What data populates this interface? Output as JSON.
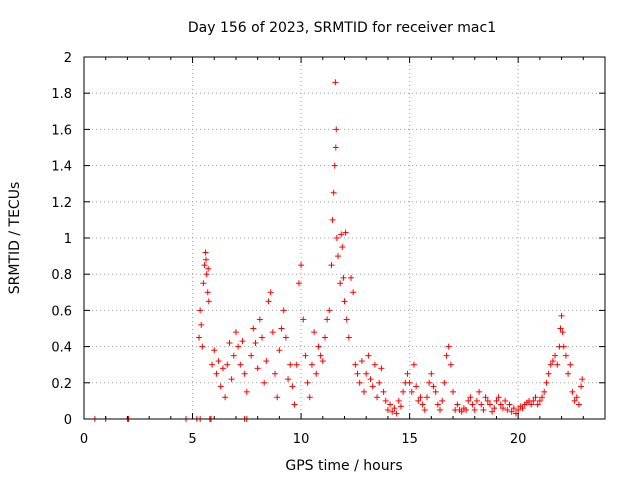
{
  "chart_data": {
    "type": "scatter",
    "title": "Day 156 of 2023, SRMTID for receiver mac1",
    "xlabel": "GPS time / hours",
    "ylabel": "SRMTID / TECUs",
    "xlim": [
      0,
      24
    ],
    "ylim": [
      0,
      2
    ],
    "x_ticks": [
      0,
      5,
      10,
      15,
      20
    ],
    "y_ticks": [
      0,
      0.2,
      0.4,
      0.6,
      0.8,
      1,
      1.2,
      1.4,
      1.6,
      1.8,
      2
    ],
    "x_tick_labels": [
      "0",
      "5",
      "10",
      "15",
      "20"
    ],
    "y_tick_labels": [
      "0",
      "0.2",
      "0.4",
      "0.6",
      "0.8",
      "1",
      "1.2",
      "1.4",
      "1.6",
      "1.8",
      "2"
    ],
    "grid": true,
    "marker": "+",
    "series": [
      {
        "name": "SRMTID",
        "color": "#ff0000",
        "points": [
          [
            0.5,
            0
          ],
          [
            1.0,
            0
          ],
          [
            2.0,
            0
          ],
          [
            2.05,
            0
          ],
          [
            4.7,
            0
          ],
          [
            5.2,
            0
          ],
          [
            5.35,
            0
          ],
          [
            5.8,
            0
          ],
          [
            5.85,
            0
          ],
          [
            7.4,
            0
          ],
          [
            7.5,
            0
          ],
          [
            5.3,
            0.45
          ],
          [
            5.35,
            0.6
          ],
          [
            5.4,
            0.52
          ],
          [
            5.45,
            0.4
          ],
          [
            5.5,
            0.75
          ],
          [
            5.55,
            0.85
          ],
          [
            5.6,
            0.92
          ],
          [
            5.62,
            0.88
          ],
          [
            5.65,
            0.8
          ],
          [
            5.7,
            0.7
          ],
          [
            5.72,
            0.83
          ],
          [
            5.75,
            0.65
          ],
          [
            5.9,
            0.3
          ],
          [
            6.0,
            0.38
          ],
          [
            6.1,
            0.25
          ],
          [
            6.2,
            0.32
          ],
          [
            6.3,
            0.18
          ],
          [
            6.4,
            0.28
          ],
          [
            6.5,
            0.12
          ],
          [
            6.6,
            0.3
          ],
          [
            6.7,
            0.42
          ],
          [
            6.8,
            0.22
          ],
          [
            6.9,
            0.35
          ],
          [
            7.0,
            0.48
          ],
          [
            7.1,
            0.4
          ],
          [
            7.2,
            0.3
          ],
          [
            7.3,
            0.43
          ],
          [
            7.4,
            0.25
          ],
          [
            7.5,
            0.15
          ],
          [
            7.7,
            0.35
          ],
          [
            7.8,
            0.5
          ],
          [
            7.9,
            0.42
          ],
          [
            8.0,
            0.28
          ],
          [
            8.1,
            0.55
          ],
          [
            8.2,
            0.45
          ],
          [
            8.3,
            0.2
          ],
          [
            8.4,
            0.32
          ],
          [
            8.5,
            0.65
          ],
          [
            8.6,
            0.7
          ],
          [
            8.7,
            0.48
          ],
          [
            8.8,
            0.25
          ],
          [
            8.9,
            0.12
          ],
          [
            9.0,
            0.38
          ],
          [
            9.1,
            0.5
          ],
          [
            9.2,
            0.6
          ],
          [
            9.3,
            0.45
          ],
          [
            9.4,
            0.22
          ],
          [
            9.5,
            0.3
          ],
          [
            9.6,
            0.18
          ],
          [
            9.7,
            0.08
          ],
          [
            9.8,
            0.3
          ],
          [
            9.9,
            0.75
          ],
          [
            10.0,
            0.85
          ],
          [
            10.1,
            0.55
          ],
          [
            10.2,
            0.35
          ],
          [
            10.3,
            0.2
          ],
          [
            10.4,
            0.12
          ],
          [
            10.5,
            0.3
          ],
          [
            10.6,
            0.48
          ],
          [
            10.7,
            0.25
          ],
          [
            10.8,
            0.4
          ],
          [
            10.9,
            0.35
          ],
          [
            11.0,
            0.32
          ],
          [
            11.1,
            0.45
          ],
          [
            11.2,
            0.55
          ],
          [
            11.3,
            0.6
          ],
          [
            11.4,
            0.85
          ],
          [
            11.45,
            1.1
          ],
          [
            11.5,
            1.25
          ],
          [
            11.55,
            1.4
          ],
          [
            11.6,
            1.5
          ],
          [
            11.62,
            1.6
          ],
          [
            11.58,
            1.86
          ],
          [
            11.65,
            1.0
          ],
          [
            11.7,
            0.9
          ],
          [
            11.8,
            0.75
          ],
          [
            11.85,
            1.02
          ],
          [
            11.9,
            0.95
          ],
          [
            11.95,
            0.78
          ],
          [
            12.0,
            0.65
          ],
          [
            12.05,
            1.03
          ],
          [
            12.1,
            0.55
          ],
          [
            12.2,
            0.45
          ],
          [
            12.3,
            0.78
          ],
          [
            12.4,
            0.7
          ],
          [
            12.5,
            0.3
          ],
          [
            12.6,
            0.25
          ],
          [
            12.7,
            0.2
          ],
          [
            12.8,
            0.32
          ],
          [
            12.9,
            0.15
          ],
          [
            13.0,
            0.25
          ],
          [
            13.1,
            0.35
          ],
          [
            13.2,
            0.22
          ],
          [
            13.3,
            0.18
          ],
          [
            13.4,
            0.3
          ],
          [
            13.5,
            0.12
          ],
          [
            13.6,
            0.2
          ],
          [
            13.7,
            0.28
          ],
          [
            13.8,
            0.15
          ],
          [
            13.9,
            0.1
          ],
          [
            14.0,
            0.05
          ],
          [
            14.1,
            0.08
          ],
          [
            14.2,
            0.04
          ],
          [
            14.3,
            0.06
          ],
          [
            14.4,
            0.03
          ],
          [
            14.5,
            0.1
          ],
          [
            14.6,
            0.07
          ],
          [
            14.7,
            0.15
          ],
          [
            14.8,
            0.2
          ],
          [
            14.9,
            0.25
          ],
          [
            15.0,
            0.2
          ],
          [
            15.1,
            0.15
          ],
          [
            15.2,
            0.3
          ],
          [
            15.3,
            0.18
          ],
          [
            15.4,
            0.1
          ],
          [
            15.5,
            0.12
          ],
          [
            15.6,
            0.08
          ],
          [
            15.7,
            0.05
          ],
          [
            15.8,
            0.12
          ],
          [
            15.9,
            0.2
          ],
          [
            16.0,
            0.25
          ],
          [
            16.1,
            0.18
          ],
          [
            16.2,
            0.15
          ],
          [
            16.3,
            0.08
          ],
          [
            16.4,
            0.05
          ],
          [
            16.5,
            0.1
          ],
          [
            16.6,
            0.2
          ],
          [
            16.7,
            0.35
          ],
          [
            16.8,
            0.4
          ],
          [
            16.9,
            0.3
          ],
          [
            17.0,
            0.15
          ],
          [
            17.1,
            0.05
          ],
          [
            17.2,
            0.08
          ],
          [
            17.3,
            0.05
          ],
          [
            17.4,
            0.04
          ],
          [
            17.5,
            0.06
          ],
          [
            17.6,
            0.05
          ],
          [
            17.7,
            0.1
          ],
          [
            17.8,
            0.12
          ],
          [
            17.9,
            0.08
          ],
          [
            18.0,
            0.05
          ],
          [
            18.1,
            0.1
          ],
          [
            18.2,
            0.15
          ],
          [
            18.3,
            0.08
          ],
          [
            18.4,
            0.05
          ],
          [
            18.5,
            0.12
          ],
          [
            18.6,
            0.1
          ],
          [
            18.7,
            0.08
          ],
          [
            18.8,
            0.04
          ],
          [
            18.9,
            0.06
          ],
          [
            19.0,
            0.1
          ],
          [
            19.1,
            0.12
          ],
          [
            19.2,
            0.08
          ],
          [
            19.3,
            0.06
          ],
          [
            19.4,
            0.1
          ],
          [
            19.5,
            0.05
          ],
          [
            19.6,
            0.08
          ],
          [
            19.7,
            0.04
          ],
          [
            19.8,
            0.06
          ],
          [
            19.9,
            0.03
          ],
          [
            20.0,
            0.05
          ],
          [
            20.1,
            0.07
          ],
          [
            20.2,
            0.06
          ],
          [
            20.3,
            0.08
          ],
          [
            20.4,
            0.09
          ],
          [
            20.5,
            0.1
          ],
          [
            20.6,
            0.08
          ],
          [
            20.7,
            0.1
          ],
          [
            20.8,
            0.12
          ],
          [
            20.9,
            0.08
          ],
          [
            21.0,
            0.1
          ],
          [
            21.1,
            0.12
          ],
          [
            21.2,
            0.15
          ],
          [
            21.3,
            0.2
          ],
          [
            21.4,
            0.25
          ],
          [
            21.5,
            0.3
          ],
          [
            21.6,
            0.32
          ],
          [
            21.7,
            0.35
          ],
          [
            21.8,
            0.3
          ],
          [
            21.9,
            0.4
          ],
          [
            21.95,
            0.5
          ],
          [
            22.0,
            0.57
          ],
          [
            22.05,
            0.48
          ],
          [
            22.1,
            0.4
          ],
          [
            22.2,
            0.35
          ],
          [
            22.3,
            0.25
          ],
          [
            22.4,
            0.3
          ],
          [
            22.5,
            0.15
          ],
          [
            22.6,
            0.1
          ],
          [
            22.7,
            0.12
          ],
          [
            22.8,
            0.08
          ],
          [
            22.9,
            0.18
          ],
          [
            22.95,
            0.22
          ]
        ]
      }
    ]
  }
}
